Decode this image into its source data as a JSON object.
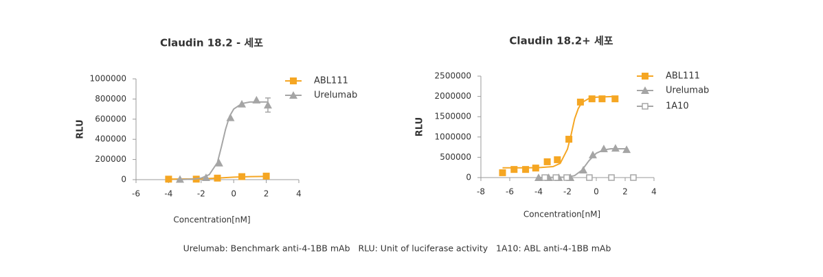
{
  "chart_data": [
    {
      "type": "scatter",
      "title": "Claudin 18.2 - 세포",
      "x_label": "Concentration[nM]",
      "y_label": "RLU",
      "xlim": [
        -6,
        4
      ],
      "xticks": [
        -6,
        -4,
        -2,
        0,
        2,
        4
      ],
      "ylim": [
        0,
        1000000
      ],
      "yticks": [
        0,
        200000,
        400000,
        600000,
        800000,
        1000000
      ],
      "series": [
        {
          "name": "ABL111",
          "color": "#f5a623",
          "marker": "square",
          "x": [
            -4,
            -2.3,
            -1,
            0.5,
            2
          ],
          "values": [
            5000,
            5000,
            15000,
            30000,
            35000
          ],
          "fit_x": [
            -4,
            -2,
            -1,
            0,
            1,
            2
          ],
          "fit_values": [
            5000,
            8000,
            15000,
            25000,
            30000,
            32000
          ]
        },
        {
          "name": "Urelumab",
          "color": "#a5a5a5",
          "marker": "triangle",
          "x": [
            -3.3,
            -1.7,
            -0.9,
            -0.2,
            0.5,
            1.4,
            2.1
          ],
          "values": [
            3000,
            20000,
            165000,
            615000,
            750000,
            790000,
            740000
          ],
          "errors": [
            null,
            null,
            null,
            null,
            null,
            null,
            70000
          ],
          "fit_x": [
            -3.5,
            -2.5,
            -2,
            -1.5,
            -1,
            -0.75,
            -0.5,
            -0.25,
            0,
            0.5,
            1,
            2.1
          ],
          "fit_values": [
            0,
            5000,
            15000,
            50000,
            170000,
            330000,
            500000,
            630000,
            700000,
            755000,
            770000,
            770000
          ]
        }
      ]
    },
    {
      "type": "scatter",
      "title": "Claudin 18.2+ 세포",
      "x_label": "Concentration[nM]",
      "y_label": "RLU",
      "xlim": [
        -8,
        4
      ],
      "xticks": [
        -8,
        -6,
        -4,
        -2,
        0,
        2,
        4
      ],
      "ylim": [
        0,
        2500000
      ],
      "yticks": [
        0,
        500000,
        1000000,
        1500000,
        2000000,
        2500000
      ],
      "series": [
        {
          "name": "ABL111",
          "color": "#f5a623",
          "marker": "square",
          "x": [
            -6.5,
            -5.7,
            -4.9,
            -4.2,
            -3.4,
            -2.7,
            -1.9,
            -1.1,
            -0.3,
            0.4,
            1.3
          ],
          "values": [
            120000,
            200000,
            200000,
            235000,
            390000,
            440000,
            945000,
            1860000,
            1940000,
            1940000,
            1940000
          ],
          "fit_x": [
            -6.5,
            -5,
            -4,
            -3,
            -2.5,
            -2,
            -1.75,
            -1.5,
            -1.25,
            -1,
            -0.5,
            0,
            1.3
          ],
          "fit_values": [
            240000,
            240000,
            245000,
            270000,
            350000,
            700000,
            1050000,
            1450000,
            1700000,
            1850000,
            1950000,
            1980000,
            2000000
          ]
        },
        {
          "name": "Urelumab",
          "color": "#a5a5a5",
          "marker": "triangle",
          "x": [
            -4,
            -3.3,
            -2.6,
            -1.8,
            -0.9,
            -0.24,
            0.52,
            1.33,
            2.1
          ],
          "values": [
            0,
            0,
            0,
            0,
            185000,
            560000,
            710000,
            725000,
            690000
          ],
          "fit_x": [
            -4,
            -2,
            -1.5,
            -1,
            -0.5,
            0,
            0.5,
            1,
            2.1
          ],
          "fit_values": [
            0,
            10000,
            50000,
            180000,
            420000,
            600000,
            680000,
            710000,
            710000
          ]
        },
        {
          "name": "1A10",
          "color": "#a5a5a5",
          "marker": "square-open",
          "x": [
            -3.57,
            -2.8,
            -2.05,
            -0.48,
            1.05,
            2.57
          ],
          "values": [
            0,
            0,
            0,
            0,
            0,
            0
          ]
        }
      ]
    }
  ],
  "footnote": "Urelumab: Benchmark anti-4-1BB mAb   RLU: Unit of luciferase activity   1A10: ABL anti-4-1BB mAb"
}
